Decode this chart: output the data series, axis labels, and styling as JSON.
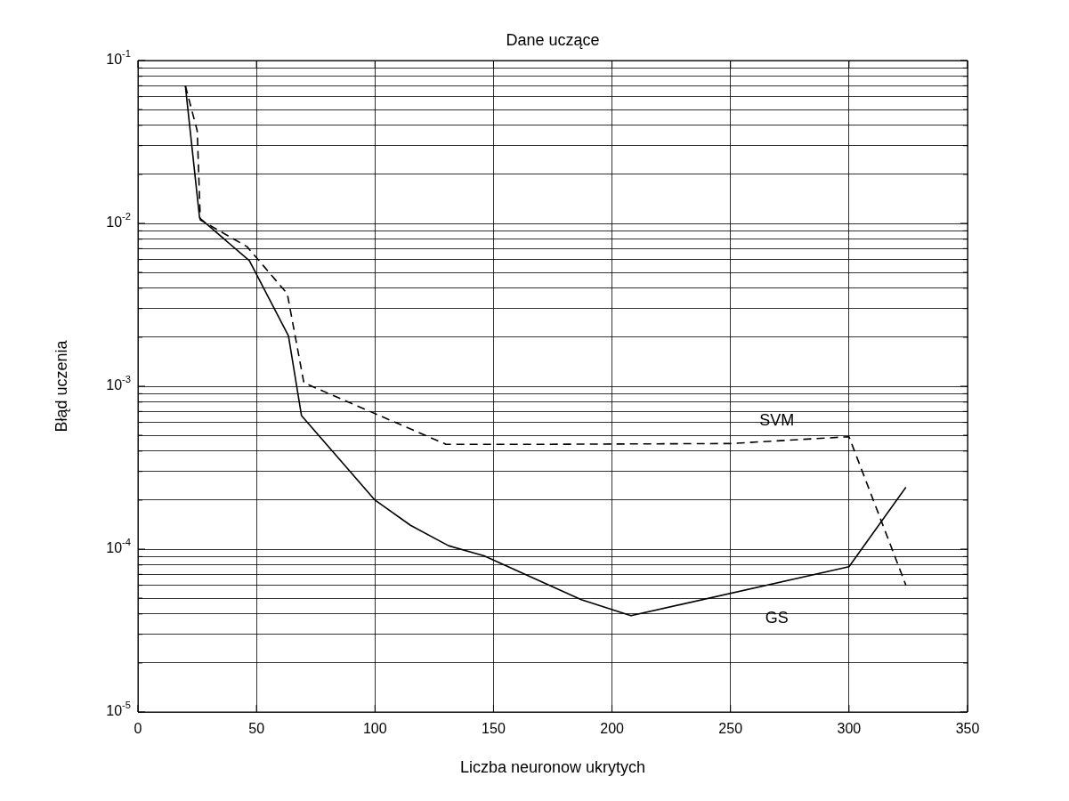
{
  "chart_data": {
    "type": "line",
    "title": "Dane uczące",
    "xlabel": "Liczba neuronow ukrytych",
    "ylabel": "Błąd uczenia",
    "log": "y",
    "grid": true,
    "legend": false,
    "marker": "none",
    "xlim": [
      0,
      350
    ],
    "xticks": [
      0,
      50,
      100,
      150,
      200,
      250,
      300,
      350
    ],
    "ylim": [
      1e-05,
      0.1
    ],
    "yticks": [
      {
        "value": 1e-05,
        "label": "10$^{-5}$"
      },
      {
        "value": 2e-05,
        "label": null
      },
      {
        "value": 3e-05,
        "label": null
      },
      {
        "value": 4e-05,
        "label": null
      },
      {
        "value": 5e-05,
        "label": null
      },
      {
        "value": 6e-05,
        "label": null
      },
      {
        "value": 7e-05,
        "label": null
      },
      {
        "value": 8e-05,
        "label": null
      },
      {
        "value": 9e-05,
        "label": null
      },
      {
        "value": 0.0001,
        "label": "10$^{-4}$"
      },
      {
        "value": 0.0002,
        "label": null
      },
      {
        "value": 0.0003,
        "label": null
      },
      {
        "value": 0.0004,
        "label": null
      },
      {
        "value": 0.0005,
        "label": null
      },
      {
        "value": 0.0006,
        "label": null
      },
      {
        "value": 0.0007,
        "label": null
      },
      {
        "value": 0.0008,
        "label": null
      },
      {
        "value": 0.0009,
        "label": null
      },
      {
        "value": 0.001,
        "label": "10$^{-3}$"
      },
      {
        "value": 0.002,
        "label": null
      },
      {
        "value": 0.003,
        "label": null
      },
      {
        "value": 0.004,
        "label": null
      },
      {
        "value": 0.005,
        "label": null
      },
      {
        "value": 0.006,
        "label": null
      },
      {
        "value": 0.007,
        "label": null
      },
      {
        "value": 0.008,
        "label": null
      },
      {
        "value": 0.009,
        "label": null
      },
      {
        "value": 0.01,
        "label": "10$^{-2}$"
      },
      {
        "value": 0.02,
        "label": null
      },
      {
        "value": 0.03,
        "label": null
      },
      {
        "value": 0.04,
        "label": null
      },
      {
        "value": 0.05,
        "label": null
      },
      {
        "value": 0.06,
        "label": null
      },
      {
        "value": 0.07,
        "label": null
      },
      {
        "value": 0.08,
        "label": null
      },
      {
        "value": 0.09,
        "label": null
      },
      {
        "value": 0.1,
        "label": "10$^{-1}$"
      }
    ],
    "series": [
      {
        "name": "GS",
        "color": "#000000",
        "line_style": "solid",
        "x": [
          20,
          26,
          47,
          63.5,
          69,
          100,
          115,
          131,
          146,
          187,
          208,
          300,
          324
        ],
        "values": [
          0.07,
          0.0108,
          0.0059,
          0.00204,
          0.00066,
          0.0002,
          0.00014,
          0.000105,
          9.1e-05,
          4.9e-05,
          3.9e-05,
          7.8e-05,
          0.00024
        ]
      },
      {
        "name": "SVM",
        "color": "#000000",
        "line_style": "dashed",
        "x": [
          20,
          25,
          26.3,
          46,
          63,
          70,
          130,
          167,
          250,
          300,
          324
        ],
        "values": [
          0.07,
          0.037,
          0.0105,
          0.0072,
          0.0037,
          0.00105,
          0.00044,
          0.00044,
          0.000445,
          0.00049,
          6e-05
        ]
      }
    ]
  }
}
